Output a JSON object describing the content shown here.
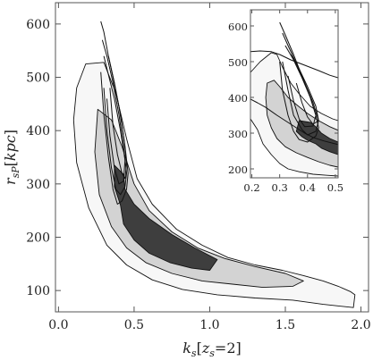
{
  "chart_data": {
    "type": "contour",
    "main": {
      "xlabel": "k",
      "xlabel_sub": "s",
      "xlabel_bracket": "z",
      "xlabel_bracket_sub": "s",
      "xlabel_bracket_value": "=2",
      "ylabel": "r",
      "ylabel_sub": "sP",
      "ylabel_unit": "kpc",
      "xlim": [
        -0.02,
        2.05
      ],
      "ylim": [
        60,
        640
      ],
      "xticks": [
        "0.0",
        "0.5",
        "1.0",
        "1.5",
        "2.0"
      ],
      "xtick_values": [
        0.0,
        0.5,
        1.0,
        1.5,
        2.0
      ],
      "yticks": [
        "100",
        "200",
        "300",
        "400",
        "500",
        "600"
      ],
      "ytick_values": [
        100,
        200,
        300,
        400,
        500,
        600
      ],
      "filled_levels": [
        {
          "level": "outer",
          "fill": "#f7f7f7",
          "points": [
            [
              0.18,
              525
            ],
            [
              0.3,
              528
            ],
            [
              0.38,
              470
            ],
            [
              0.45,
              385
            ],
            [
              0.52,
              310
            ],
            [
              0.62,
              262
            ],
            [
              0.78,
              215
            ],
            [
              0.95,
              185
            ],
            [
              1.12,
              162
            ],
            [
              1.3,
              148
            ],
            [
              1.48,
              138
            ],
            [
              1.62,
              128
            ],
            [
              1.75,
              118
            ],
            [
              1.85,
              108
            ],
            [
              1.93,
              98
            ],
            [
              1.96,
              92
            ],
            [
              1.95,
              68
            ],
            [
              1.75,
              74
            ],
            [
              1.55,
              82
            ],
            [
              1.3,
              86
            ],
            [
              1.05,
              92
            ],
            [
              0.82,
              102
            ],
            [
              0.62,
              120
            ],
            [
              0.45,
              148
            ],
            [
              0.32,
              185
            ],
            [
              0.2,
              255
            ],
            [
              0.12,
              340
            ],
            [
              0.1,
              420
            ],
            [
              0.12,
              480
            ]
          ]
        },
        {
          "level": "middle",
          "fill": "#d3d3d3",
          "points": [
            [
              0.26,
              440
            ],
            [
              0.35,
              420
            ],
            [
              0.42,
              370
            ],
            [
              0.5,
              300
            ],
            [
              0.6,
              250
            ],
            [
              0.75,
              210
            ],
            [
              0.92,
              180
            ],
            [
              1.1,
              160
            ],
            [
              1.3,
              145
            ],
            [
              1.5,
              132
            ],
            [
              1.62,
              118
            ],
            [
              1.55,
              108
            ],
            [
              1.35,
              106
            ],
            [
              1.15,
              112
            ],
            [
              0.95,
              118
            ],
            [
              0.75,
              132
            ],
            [
              0.58,
              152
            ],
            [
              0.45,
              180
            ],
            [
              0.35,
              220
            ],
            [
              0.27,
              280
            ],
            [
              0.24,
              360
            ]
          ]
        },
        {
          "level": "inner",
          "fill": "#3e3e3e",
          "points": [
            [
              0.37,
              335
            ],
            [
              0.43,
              318
            ],
            [
              0.44,
              290
            ],
            [
              0.5,
              262
            ],
            [
              0.6,
              235
            ],
            [
              0.75,
              205
            ],
            [
              0.9,
              180
            ],
            [
              1.05,
              158
            ],
            [
              1.0,
              138
            ],
            [
              0.88,
              142
            ],
            [
              0.74,
              152
            ],
            [
              0.6,
              170
            ],
            [
              0.5,
              195
            ],
            [
              0.43,
              225
            ],
            [
              0.41,
              260
            ],
            [
              0.37,
              295
            ]
          ]
        }
      ],
      "line_contours": [
        [
          [
            0.28,
            605
          ],
          [
            0.3,
            585
          ],
          [
            0.33,
            540
          ],
          [
            0.37,
            490
          ],
          [
            0.41,
            430
          ],
          [
            0.44,
            370
          ],
          [
            0.46,
            320
          ],
          [
            0.45,
            290
          ],
          [
            0.42,
            268
          ],
          [
            0.39,
            262
          ],
          [
            0.36,
            290
          ],
          [
            0.33,
            350
          ],
          [
            0.3,
            430
          ],
          [
            0.28,
            510
          ]
        ],
        [
          [
            0.29,
            570
          ],
          [
            0.32,
            540
          ],
          [
            0.36,
            490
          ],
          [
            0.4,
            430
          ],
          [
            0.43,
            370
          ],
          [
            0.45,
            320
          ],
          [
            0.44,
            295
          ],
          [
            0.41,
            280
          ],
          [
            0.38,
            290
          ],
          [
            0.35,
            330
          ],
          [
            0.32,
            400
          ],
          [
            0.3,
            480
          ]
        ],
        [
          [
            0.3,
            540
          ],
          [
            0.33,
            505
          ],
          [
            0.37,
            460
          ],
          [
            0.41,
            400
          ],
          [
            0.44,
            345
          ],
          [
            0.43,
            305
          ],
          [
            0.4,
            300
          ],
          [
            0.37,
            330
          ],
          [
            0.34,
            390
          ],
          [
            0.32,
            460
          ]
        ],
        [
          [
            0.33,
            540
          ],
          [
            0.36,
            500
          ],
          [
            0.4,
            445
          ],
          [
            0.43,
            390
          ],
          [
            0.45,
            340
          ],
          [
            0.44,
            310
          ],
          [
            0.42,
            320
          ],
          [
            0.39,
            355
          ],
          [
            0.36,
            410
          ],
          [
            0.34,
            480
          ]
        ]
      ]
    },
    "inset": {
      "xlim": [
        0.195,
        0.51
      ],
      "ylim": [
        175,
        645
      ],
      "xticks": [
        "0.2",
        "0.3",
        "0.4",
        "0.5"
      ],
      "xtick_values": [
        0.2,
        0.3,
        0.4,
        0.5
      ],
      "yticks": [
        "200",
        "300",
        "400",
        "500",
        "600"
      ],
      "ytick_values": [
        200,
        300,
        400,
        500,
        600
      ],
      "filled_levels": [
        {
          "level": "outer",
          "fill": "#f7f7f7",
          "points": [
            [
              0.195,
              470
            ],
            [
              0.23,
              500
            ],
            [
              0.27,
              525
            ],
            [
              0.29,
              520
            ],
            [
              0.31,
              485
            ],
            [
              0.34,
              440
            ],
            [
              0.37,
              410
            ],
            [
              0.41,
              375
            ],
            [
              0.45,
              355
            ],
            [
              0.49,
              340
            ],
            [
              0.51,
              335
            ],
            [
              0.51,
              180
            ],
            [
              0.47,
              182
            ],
            [
              0.42,
              185
            ],
            [
              0.37,
              192
            ],
            [
              0.33,
              200
            ],
            [
              0.3,
              215
            ],
            [
              0.27,
              240
            ],
            [
              0.24,
              270
            ],
            [
              0.22,
              310
            ],
            [
              0.195,
              340
            ]
          ]
        },
        {
          "level": "middle",
          "fill": "#d3d3d3",
          "points": [
            [
              0.255,
              440
            ],
            [
              0.28,
              448
            ],
            [
              0.3,
              430
            ],
            [
              0.33,
              400
            ],
            [
              0.36,
              380
            ],
            [
              0.4,
              355
            ],
            [
              0.44,
              335
            ],
            [
              0.48,
              318
            ],
            [
              0.51,
              308
            ],
            [
              0.51,
              205
            ],
            [
              0.48,
              210
            ],
            [
              0.44,
              220
            ],
            [
              0.4,
              232
            ],
            [
              0.36,
              245
            ],
            [
              0.32,
              262
            ],
            [
              0.29,
              285
            ],
            [
              0.27,
              315
            ],
            [
              0.255,
              350
            ],
            [
              0.25,
              400
            ]
          ]
        },
        {
          "level": "inner",
          "fill": "#3e3e3e",
          "points": [
            [
              0.37,
              335
            ],
            [
              0.41,
              330
            ],
            [
              0.43,
              318
            ],
            [
              0.45,
              300
            ],
            [
              0.48,
              285
            ],
            [
              0.51,
              275
            ],
            [
              0.51,
              240
            ],
            [
              0.48,
              248
            ],
            [
              0.45,
              258
            ],
            [
              0.43,
              270
            ],
            [
              0.4,
              280
            ],
            [
              0.38,
              290
            ],
            [
              0.36,
              305
            ]
          ]
        }
      ],
      "line_contours": [
        [
          [
            0.195,
            528
          ],
          [
            0.23,
            530
          ],
          [
            0.27,
            528
          ],
          [
            0.3,
            520
          ],
          [
            0.34,
            505
          ],
          [
            0.39,
            490
          ],
          [
            0.44,
            475
          ],
          [
            0.48,
            462
          ],
          [
            0.51,
            455
          ]
        ],
        [
          [
            0.195,
            395
          ],
          [
            0.22,
            385
          ],
          [
            0.25,
            372
          ],
          [
            0.29,
            350
          ],
          [
            0.33,
            330
          ],
          [
            0.36,
            315
          ],
          [
            0.39,
            300
          ],
          [
            0.42,
            288
          ],
          [
            0.46,
            278
          ],
          [
            0.51,
            268
          ]
        ],
        [
          [
            0.3,
            610
          ],
          [
            0.32,
            575
          ],
          [
            0.35,
            520
          ],
          [
            0.38,
            460
          ],
          [
            0.41,
            400
          ],
          [
            0.43,
            350
          ],
          [
            0.44,
            315
          ],
          [
            0.43,
            292
          ],
          [
            0.4,
            275
          ],
          [
            0.37,
            282
          ],
          [
            0.35,
            305
          ],
          [
            0.33,
            350
          ],
          [
            0.31,
            420
          ],
          [
            0.3,
            500
          ]
        ],
        [
          [
            0.31,
            580
          ],
          [
            0.33,
            545
          ],
          [
            0.36,
            495
          ],
          [
            0.39,
            440
          ],
          [
            0.42,
            385
          ],
          [
            0.44,
            335
          ],
          [
            0.43,
            305
          ],
          [
            0.4,
            295
          ],
          [
            0.38,
            310
          ],
          [
            0.35,
            350
          ],
          [
            0.33,
            420
          ],
          [
            0.31,
            500
          ]
        ],
        [
          [
            0.32,
            545
          ],
          [
            0.35,
            505
          ],
          [
            0.38,
            455
          ],
          [
            0.41,
            400
          ],
          [
            0.43,
            350
          ],
          [
            0.42,
            320
          ],
          [
            0.39,
            318
          ],
          [
            0.37,
            340
          ],
          [
            0.35,
            390
          ],
          [
            0.33,
            460
          ]
        ],
        [
          [
            0.34,
            520
          ],
          [
            0.37,
            480
          ],
          [
            0.4,
            430
          ],
          [
            0.43,
            375
          ],
          [
            0.44,
            335
          ],
          [
            0.42,
            325
          ],
          [
            0.4,
            345
          ],
          [
            0.38,
            385
          ],
          [
            0.36,
            440
          ]
        ]
      ]
    }
  }
}
